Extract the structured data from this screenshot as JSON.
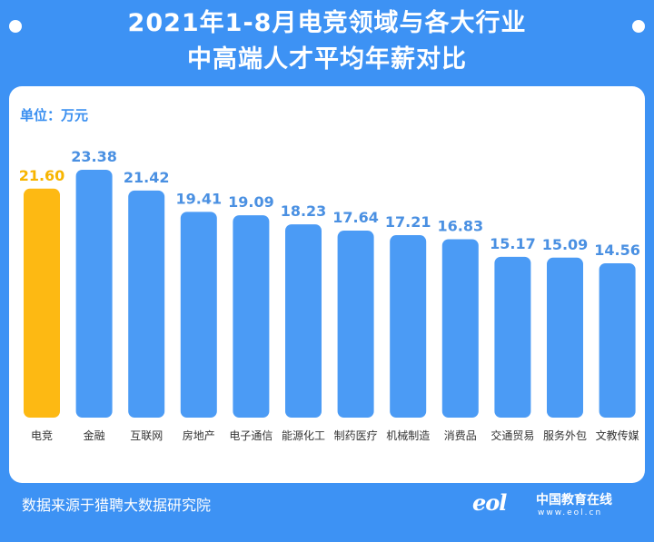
{
  "header": {
    "title_line1": "2021年1-8月电竞领域与各大行业",
    "title_line2": "中高端人才平均年薪对比"
  },
  "unit_label": "单位：万元",
  "source": "数据来源于猎聘大数据研究院",
  "logo": {
    "mark": "eol",
    "name": "中国教育在线",
    "url": "www.eol.cn"
  },
  "colors": {
    "background": "#3d92f4",
    "bar_default": "#4b9bf5",
    "bar_highlight": "#fdb913",
    "value_default": "#4a90e2",
    "value_highlight": "#f7b500"
  },
  "chart_data": {
    "type": "bar",
    "title": "2021年1-8月电竞领域与各大行业中高端人才平均年薪对比",
    "ylabel": "单位：万元",
    "categories": [
      "电竞",
      "金融",
      "互联网",
      "房地产",
      "电子通信",
      "能源化工",
      "制药医疗",
      "机械制造",
      "消费品",
      "交通贸易",
      "服务外包",
      "文教传媒"
    ],
    "values": [
      21.6,
      23.38,
      21.42,
      19.41,
      19.09,
      18.23,
      17.64,
      17.21,
      16.83,
      15.17,
      15.09,
      14.56
    ],
    "value_labels": [
      "21.60",
      "23.38",
      "21.42",
      "19.41",
      "19.09",
      "18.23",
      "17.64",
      "17.21",
      "16.83",
      "15.17",
      "15.09",
      "14.56"
    ],
    "highlight_index": 0,
    "grid": false,
    "legend": "none"
  }
}
